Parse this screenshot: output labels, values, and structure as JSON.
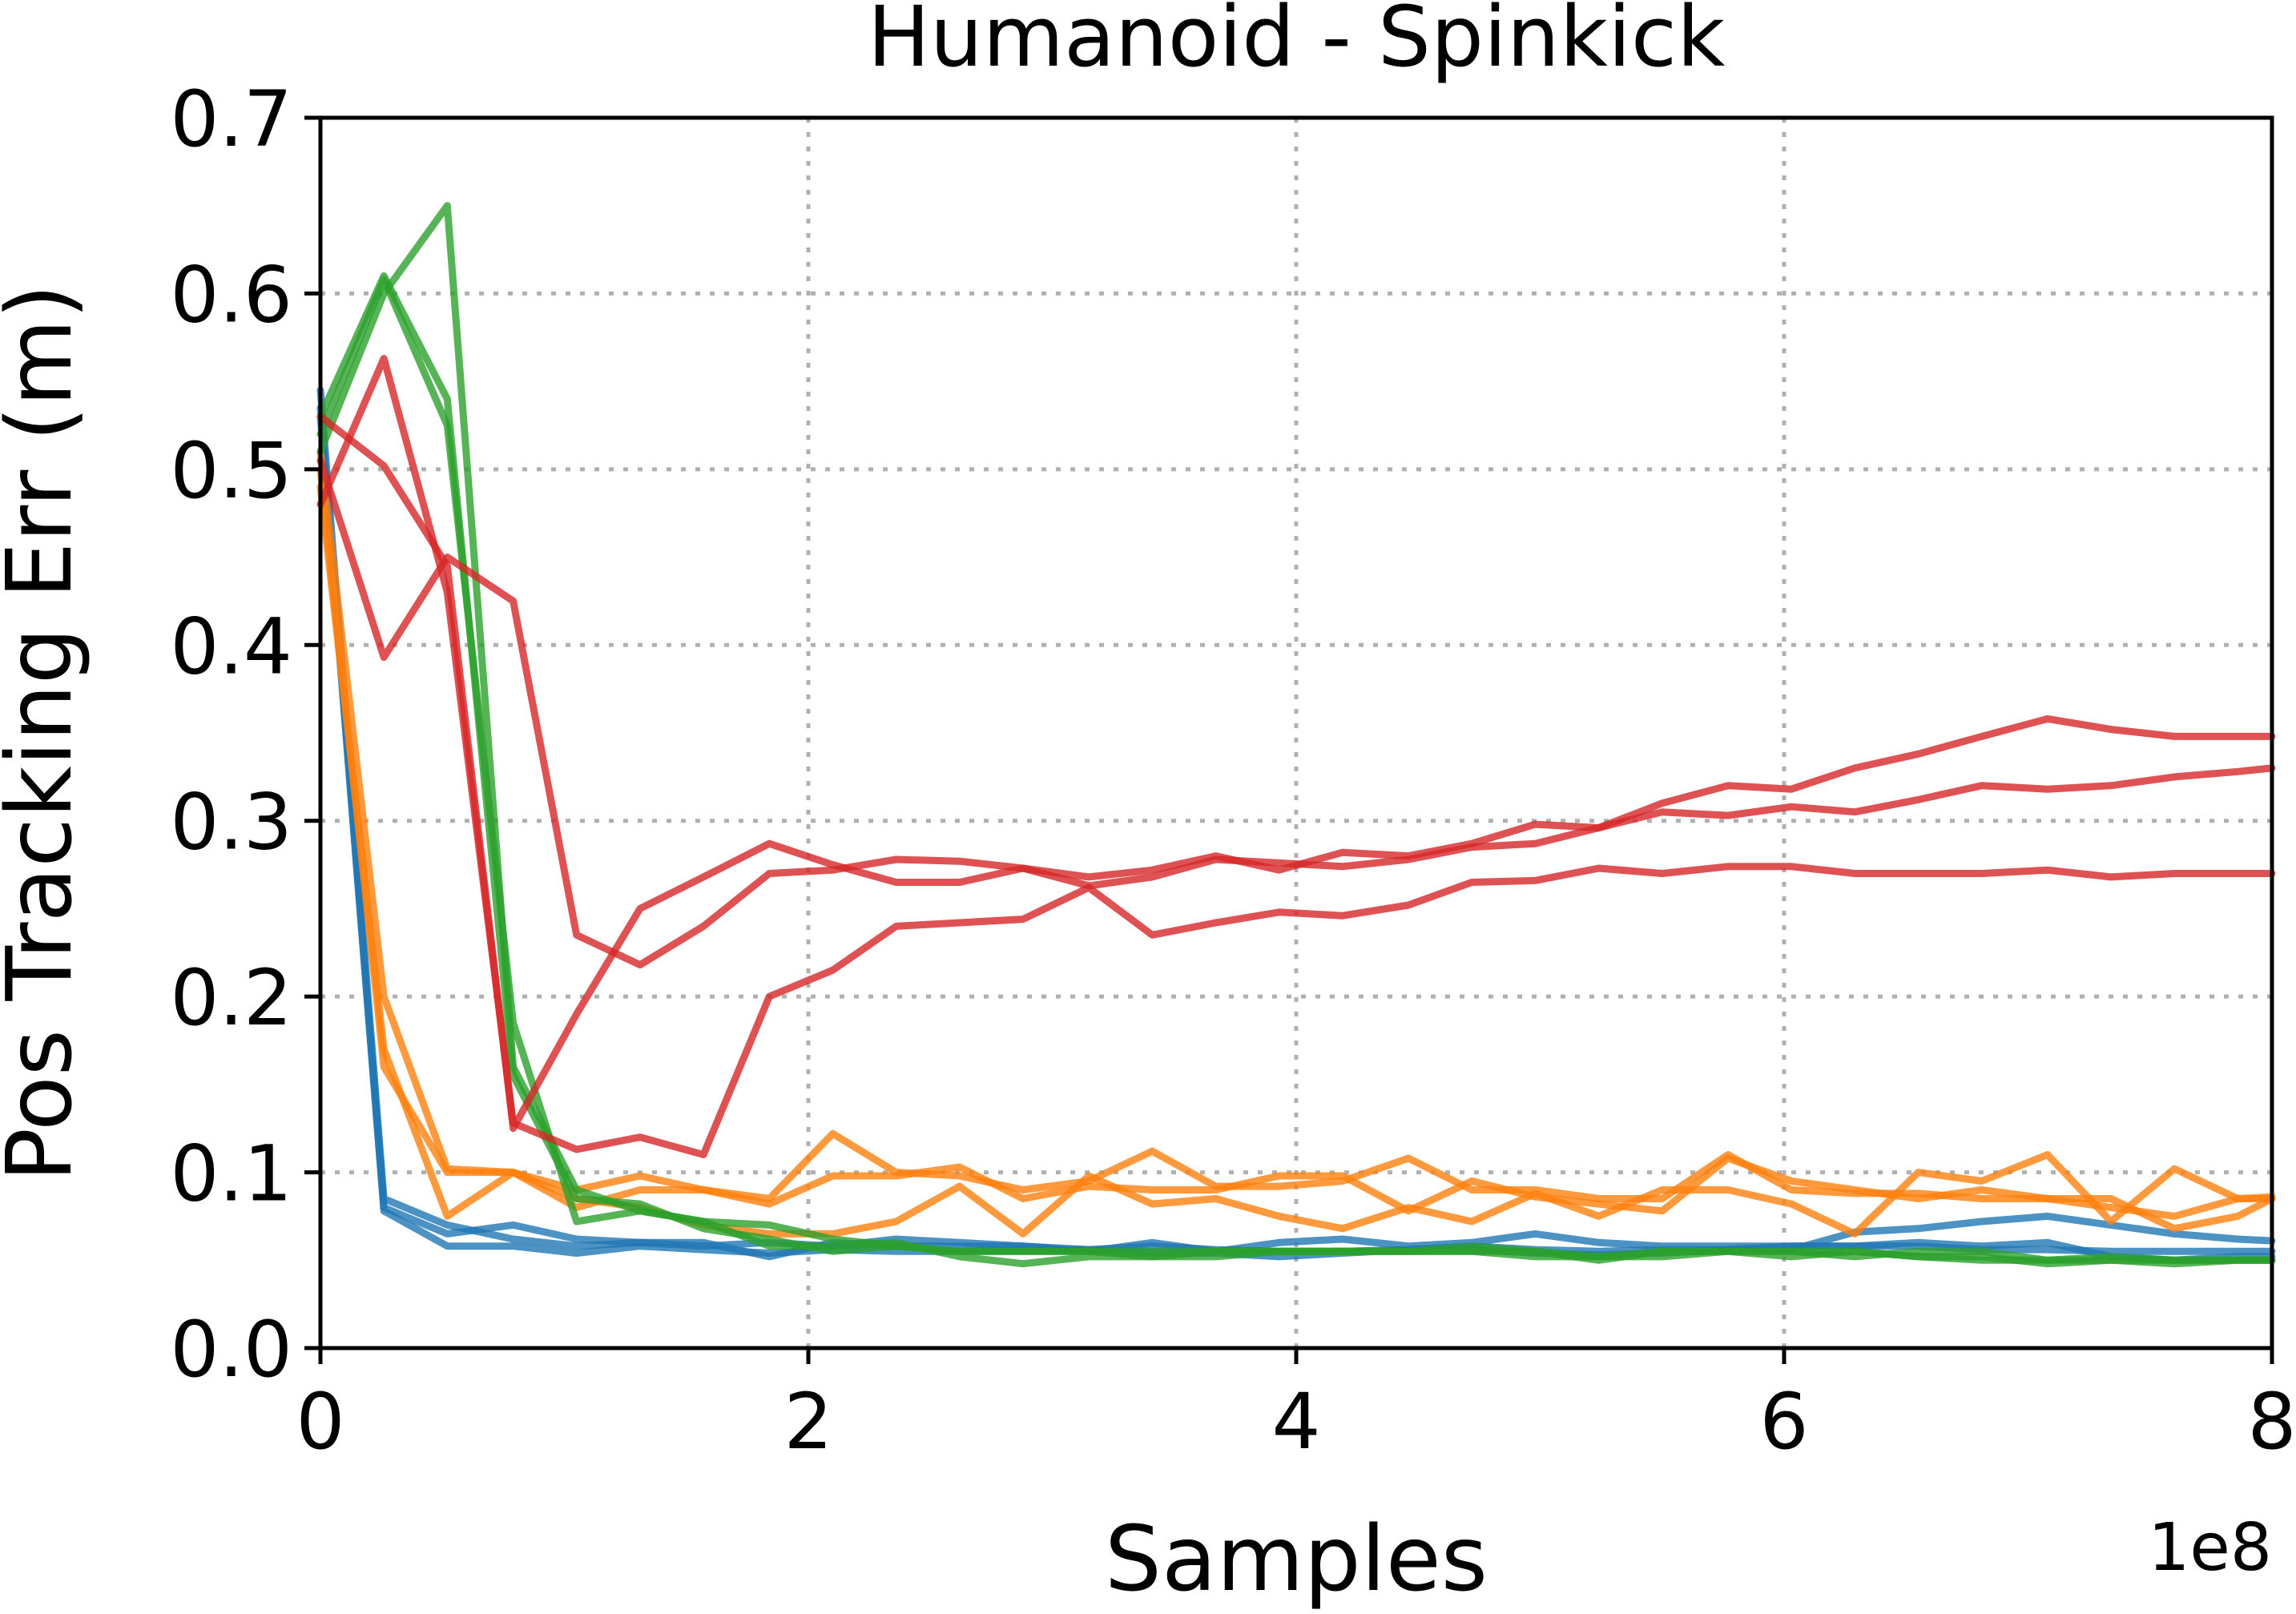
{
  "chart_data": {
    "type": "line",
    "title": "Humanoid - Spinkick",
    "xlabel": "Samples",
    "ylabel": "Pos Tracking Err (m)",
    "x_offset_label": "1e8",
    "xlim": [
      0,
      8
    ],
    "ylim": [
      0,
      0.7
    ],
    "x_ticks": [
      0,
      2,
      4,
      6,
      8
    ],
    "x_tick_labels": [
      "0",
      "2",
      "4",
      "6",
      "8"
    ],
    "y_ticks": [
      0.0,
      0.1,
      0.2,
      0.3,
      0.4,
      0.5,
      0.6,
      0.7
    ],
    "y_tick_labels": [
      "0.0",
      "0.1",
      "0.2",
      "0.3",
      "0.4",
      "0.5",
      "0.6",
      "0.7"
    ],
    "grid": true,
    "series": [
      {
        "color": "#1f77b4",
        "x": [
          0,
          0.26,
          0.52,
          0.79,
          1.05,
          1.31,
          1.57,
          1.84,
          2.1,
          2.36,
          2.62,
          2.88,
          3.15,
          3.41,
          3.67,
          3.93,
          4.19,
          4.46,
          4.72,
          4.98,
          5.24,
          5.5,
          5.77,
          6.03,
          6.29,
          6.55,
          6.81,
          7.08,
          7.34,
          7.6,
          7.86,
          8.0
        ],
        "y": [
          0.545,
          0.085,
          0.07,
          0.062,
          0.058,
          0.06,
          0.058,
          0.06,
          0.058,
          0.062,
          0.06,
          0.058,
          0.056,
          0.058,
          0.056,
          0.055,
          0.055,
          0.056,
          0.058,
          0.056,
          0.055,
          0.056,
          0.056,
          0.058,
          0.058,
          0.058,
          0.056,
          0.056,
          0.055,
          0.055,
          0.055,
          0.055
        ]
      },
      {
        "color": "#1f77b4",
        "x": [
          0,
          0.26,
          0.52,
          0.79,
          1.05,
          1.31,
          1.57,
          1.84,
          2.1,
          2.36,
          2.62,
          2.88,
          3.15,
          3.41,
          3.67,
          3.93,
          4.19,
          4.46,
          4.72,
          4.98,
          5.24,
          5.5,
          5.77,
          6.03,
          6.29,
          6.55,
          6.81,
          7.08,
          7.34,
          7.6,
          7.86,
          8.0
        ],
        "y": [
          0.535,
          0.078,
          0.058,
          0.058,
          0.054,
          0.058,
          0.056,
          0.054,
          0.056,
          0.055,
          0.055,
          0.056,
          0.056,
          0.054,
          0.054,
          0.052,
          0.054,
          0.056,
          0.056,
          0.054,
          0.053,
          0.054,
          0.056,
          0.056,
          0.066,
          0.068,
          0.072,
          0.075,
          0.07,
          0.065,
          0.062,
          0.061
        ]
      },
      {
        "color": "#1f77b4",
        "x": [
          0,
          0.26,
          0.52,
          0.79,
          1.05,
          1.31,
          1.57,
          1.84,
          2.1,
          2.36,
          2.62,
          2.88,
          3.15,
          3.41,
          3.67,
          3.93,
          4.19,
          4.46,
          4.72,
          4.98,
          5.24,
          5.5,
          5.77,
          6.03,
          6.29,
          6.55,
          6.81,
          7.08,
          7.34,
          7.6,
          7.86,
          8.0
        ],
        "y": [
          0.53,
          0.08,
          0.065,
          0.07,
          0.062,
          0.06,
          0.06,
          0.052,
          0.06,
          0.058,
          0.058,
          0.058,
          0.055,
          0.06,
          0.055,
          0.06,
          0.062,
          0.058,
          0.06,
          0.065,
          0.06,
          0.058,
          0.058,
          0.058,
          0.058,
          0.06,
          0.058,
          0.06,
          0.052,
          0.05,
          0.052,
          0.052
        ]
      },
      {
        "color": "#ff7f0e",
        "x": [
          0,
          0.26,
          0.52,
          0.79,
          1.05,
          1.31,
          1.57,
          1.84,
          2.1,
          2.36,
          2.62,
          2.88,
          3.15,
          3.41,
          3.67,
          3.93,
          4.19,
          4.46,
          4.72,
          4.98,
          5.24,
          5.5,
          5.77,
          6.03,
          6.29,
          6.55,
          6.81,
          7.08,
          7.34,
          7.6,
          7.86,
          8.0
        ],
        "y": [
          0.51,
          0.2,
          0.102,
          0.1,
          0.09,
          0.098,
          0.09,
          0.085,
          0.122,
          0.1,
          0.098,
          0.09,
          0.095,
          0.112,
          0.092,
          0.092,
          0.095,
          0.108,
          0.09,
          0.09,
          0.085,
          0.085,
          0.11,
          0.09,
          0.088,
          0.088,
          0.085,
          0.085,
          0.08,
          0.075,
          0.085,
          0.086
        ]
      },
      {
        "color": "#ff7f0e",
        "x": [
          0,
          0.26,
          0.52,
          0.79,
          1.05,
          1.31,
          1.57,
          1.84,
          2.1,
          2.36,
          2.62,
          2.88,
          3.15,
          3.41,
          3.67,
          3.93,
          4.19,
          4.46,
          4.72,
          4.98,
          5.24,
          5.5,
          5.77,
          6.03,
          6.29,
          6.55,
          6.81,
          7.08,
          7.34,
          7.6,
          7.86,
          8.0
        ],
        "y": [
          0.49,
          0.17,
          0.075,
          0.1,
          0.085,
          0.08,
          0.07,
          0.065,
          0.065,
          0.072,
          0.092,
          0.065,
          0.098,
          0.082,
          0.085,
          0.075,
          0.068,
          0.08,
          0.072,
          0.088,
          0.075,
          0.09,
          0.09,
          0.082,
          0.065,
          0.1,
          0.095,
          0.11,
          0.072,
          0.102,
          0.085,
          0.085
        ]
      },
      {
        "color": "#ff7f0e",
        "x": [
          0,
          0.26,
          0.52,
          0.79,
          1.05,
          1.31,
          1.57,
          1.84,
          2.1,
          2.36,
          2.62,
          2.88,
          3.15,
          3.41,
          3.67,
          3.93,
          4.19,
          4.46,
          4.72,
          4.98,
          5.24,
          5.5,
          5.77,
          6.03,
          6.29,
          6.55,
          6.81,
          7.08,
          7.34,
          7.6,
          7.86,
          8.0
        ],
        "y": [
          0.5,
          0.16,
          0.1,
          0.1,
          0.08,
          0.09,
          0.09,
          0.082,
          0.098,
          0.098,
          0.103,
          0.085,
          0.092,
          0.09,
          0.09,
          0.098,
          0.098,
          0.078,
          0.095,
          0.086,
          0.082,
          0.078,
          0.108,
          0.095,
          0.09,
          0.085,
          0.09,
          0.085,
          0.085,
          0.068,
          0.075,
          0.085
        ]
      },
      {
        "color": "#2ca02c",
        "x": [
          0,
          0.26,
          0.52,
          0.79,
          1.05,
          1.31,
          1.57,
          1.84,
          2.1,
          2.36,
          2.62,
          2.88,
          3.15,
          3.41,
          3.67,
          3.93,
          4.19,
          4.46,
          4.72,
          4.98,
          5.24,
          5.5,
          5.77,
          6.03,
          6.29,
          6.55,
          6.81,
          7.08,
          7.34,
          7.6,
          7.86,
          8.0
        ],
        "y": [
          0.52,
          0.608,
          0.525,
          0.185,
          0.072,
          0.078,
          0.072,
          0.07,
          0.062,
          0.058,
          0.055,
          0.055,
          0.055,
          0.055,
          0.055,
          0.055,
          0.055,
          0.055,
          0.055,
          0.052,
          0.052,
          0.055,
          0.055,
          0.055,
          0.055,
          0.052,
          0.05,
          0.05,
          0.052,
          0.05,
          0.05,
          0.05
        ]
      },
      {
        "color": "#2ca02c",
        "x": [
          0,
          0.26,
          0.52,
          0.79,
          1.05,
          1.31,
          1.57,
          1.84,
          2.1,
          2.36,
          2.62,
          2.88,
          3.15,
          3.41,
          3.67,
          3.93,
          4.19,
          4.46,
          4.72,
          4.98,
          5.24,
          5.5,
          5.77,
          6.03,
          6.29,
          6.55,
          6.81,
          7.08,
          7.34,
          7.6,
          7.86,
          8.0
        ],
        "y": [
          0.51,
          0.6,
          0.65,
          0.16,
          0.09,
          0.078,
          0.072,
          0.058,
          0.058,
          0.06,
          0.052,
          0.048,
          0.052,
          0.052,
          0.052,
          0.055,
          0.055,
          0.055,
          0.058,
          0.055,
          0.052,
          0.052,
          0.055,
          0.055,
          0.052,
          0.055,
          0.055,
          0.05,
          0.05,
          0.048,
          0.05,
          0.05
        ]
      },
      {
        "color": "#2ca02c",
        "x": [
          0,
          0.26,
          0.52,
          0.79,
          1.05,
          1.31,
          1.57,
          1.84,
          2.1,
          2.36,
          2.62,
          2.88,
          3.15,
          3.41,
          3.67,
          3.93,
          4.19,
          4.46,
          4.72,
          4.98,
          5.24,
          5.5,
          5.77,
          6.03,
          6.29,
          6.55,
          6.81,
          7.08,
          7.34,
          7.6,
          7.86,
          8.0
        ],
        "y": [
          0.53,
          0.61,
          0.54,
          0.155,
          0.085,
          0.082,
          0.068,
          0.062,
          0.055,
          0.058,
          0.055,
          0.055,
          0.055,
          0.052,
          0.055,
          0.055,
          0.055,
          0.055,
          0.055,
          0.055,
          0.05,
          0.055,
          0.055,
          0.052,
          0.055,
          0.052,
          0.052,
          0.048,
          0.05,
          0.05,
          0.05,
          0.05
        ]
      },
      {
        "color": "#d62728",
        "x": [
          0,
          0.26,
          0.52,
          0.79,
          1.05,
          1.31,
          1.57,
          1.84,
          2.1,
          2.36,
          2.62,
          2.88,
          3.15,
          3.41,
          3.67,
          3.93,
          4.19,
          4.46,
          4.72,
          4.98,
          5.24,
          5.5,
          5.77,
          6.03,
          6.29,
          6.55,
          6.81,
          7.08,
          7.34,
          7.6,
          7.86,
          8.0
        ],
        "y": [
          0.53,
          0.502,
          0.445,
          0.125,
          0.19,
          0.25,
          0.268,
          0.287,
          0.275,
          0.265,
          0.265,
          0.273,
          0.268,
          0.272,
          0.28,
          0.272,
          0.282,
          0.28,
          0.287,
          0.298,
          0.296,
          0.31,
          0.32,
          0.318,
          0.33,
          0.338,
          0.348,
          0.358,
          0.352,
          0.348,
          0.348,
          0.348
        ]
      },
      {
        "color": "#d62728",
        "x": [
          0,
          0.26,
          0.52,
          0.79,
          1.05,
          1.31,
          1.57,
          1.84,
          2.1,
          2.36,
          2.62,
          2.88,
          3.15,
          3.41,
          3.67,
          3.93,
          4.19,
          4.46,
          4.72,
          4.98,
          5.24,
          5.5,
          5.77,
          6.03,
          6.29,
          6.55,
          6.81,
          7.08,
          7.34,
          7.6,
          7.86,
          8.0
        ],
        "y": [
          0.505,
          0.393,
          0.45,
          0.425,
          0.235,
          0.218,
          0.24,
          0.27,
          0.272,
          0.278,
          0.277,
          0.273,
          0.263,
          0.268,
          0.278,
          0.276,
          0.274,
          0.278,
          0.285,
          0.287,
          0.296,
          0.305,
          0.303,
          0.308,
          0.305,
          0.312,
          0.32,
          0.318,
          0.32,
          0.325,
          0.328,
          0.33
        ]
      },
      {
        "color": "#d62728",
        "x": [
          0,
          0.26,
          0.52,
          0.79,
          1.05,
          1.31,
          1.57,
          1.84,
          2.1,
          2.36,
          2.62,
          2.88,
          3.15,
          3.41,
          3.67,
          3.93,
          4.19,
          4.46,
          4.72,
          4.98,
          5.24,
          5.5,
          5.77,
          6.03,
          6.29,
          6.55,
          6.81,
          7.08,
          7.34,
          7.6,
          7.86,
          8.0
        ],
        "y": [
          0.48,
          0.563,
          0.43,
          0.128,
          0.113,
          0.12,
          0.11,
          0.2,
          0.215,
          0.24,
          0.242,
          0.244,
          0.262,
          0.235,
          0.242,
          0.248,
          0.246,
          0.252,
          0.265,
          0.266,
          0.273,
          0.27,
          0.274,
          0.274,
          0.27,
          0.27,
          0.27,
          0.272,
          0.268,
          0.27,
          0.27,
          0.27
        ]
      }
    ]
  }
}
